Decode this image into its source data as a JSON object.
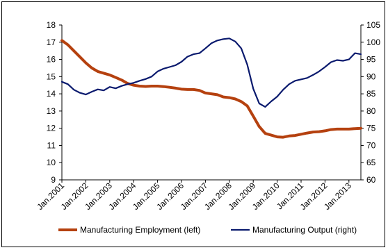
{
  "chart_data": {
    "type": "line",
    "x_labels": [
      "Jan.2001",
      "Jan.2002",
      "Jan.2003",
      "Jan.2004",
      "Jan.2005",
      "Jan.2006",
      "Jan.2007",
      "Jan.2008",
      "Jan.2009",
      "Jan.2010",
      "Jan.2011",
      "Jan.2012",
      "Jan.2013"
    ],
    "x_range": [
      "2001-01",
      "2013-07"
    ],
    "y_left": {
      "min": 9,
      "max": 18,
      "ticks": [
        "9",
        "10",
        "11",
        "12",
        "13",
        "14",
        "15",
        "16",
        "17",
        "18"
      ]
    },
    "y_right": {
      "min": 60,
      "max": 105,
      "ticks": [
        "60",
        "65",
        "70",
        "75",
        "80",
        "85",
        "90",
        "95",
        "100",
        "105"
      ]
    },
    "grid": false,
    "legend_position": "bottom",
    "series": [
      {
        "name": "Manufacturing Employment (left)",
        "axis": "left",
        "color": "#b5410f",
        "points": [
          [
            "2001-01",
            17.1
          ],
          [
            "2001-04",
            16.85
          ],
          [
            "2001-07",
            16.5
          ],
          [
            "2001-10",
            16.15
          ],
          [
            "2002-01",
            15.8
          ],
          [
            "2002-04",
            15.5
          ],
          [
            "2002-07",
            15.3
          ],
          [
            "2002-10",
            15.2
          ],
          [
            "2003-01",
            15.1
          ],
          [
            "2003-04",
            14.95
          ],
          [
            "2003-07",
            14.8
          ],
          [
            "2003-10",
            14.6
          ],
          [
            "2004-01",
            14.5
          ],
          [
            "2004-04",
            14.45
          ],
          [
            "2004-07",
            14.43
          ],
          [
            "2004-10",
            14.45
          ],
          [
            "2005-01",
            14.45
          ],
          [
            "2005-04",
            14.42
          ],
          [
            "2005-07",
            14.38
          ],
          [
            "2005-10",
            14.33
          ],
          [
            "2006-01",
            14.27
          ],
          [
            "2006-04",
            14.25
          ],
          [
            "2006-07",
            14.25
          ],
          [
            "2006-10",
            14.2
          ],
          [
            "2007-01",
            14.05
          ],
          [
            "2007-04",
            14.0
          ],
          [
            "2007-07",
            13.95
          ],
          [
            "2007-10",
            13.82
          ],
          [
            "2008-01",
            13.78
          ],
          [
            "2008-04",
            13.7
          ],
          [
            "2008-07",
            13.55
          ],
          [
            "2008-10",
            13.3
          ],
          [
            "2009-01",
            12.7
          ],
          [
            "2009-04",
            12.1
          ],
          [
            "2009-07",
            11.7
          ],
          [
            "2009-10",
            11.6
          ],
          [
            "2010-01",
            11.5
          ],
          [
            "2010-04",
            11.48
          ],
          [
            "2010-07",
            11.55
          ],
          [
            "2010-10",
            11.58
          ],
          [
            "2011-01",
            11.65
          ],
          [
            "2011-04",
            11.72
          ],
          [
            "2011-07",
            11.78
          ],
          [
            "2011-10",
            11.8
          ],
          [
            "2012-01",
            11.85
          ],
          [
            "2012-04",
            11.92
          ],
          [
            "2012-07",
            11.95
          ],
          [
            "2012-10",
            11.95
          ],
          [
            "2013-01",
            11.95
          ],
          [
            "2013-04",
            11.98
          ],
          [
            "2013-07",
            12.0
          ]
        ]
      },
      {
        "name": "Manufacturing Output (right)",
        "axis": "right",
        "color": "#0a1a6e",
        "points": [
          [
            "2001-01",
            88.5
          ],
          [
            "2001-04",
            87.8
          ],
          [
            "2001-07",
            86.2
          ],
          [
            "2001-10",
            85.3
          ],
          [
            "2002-01",
            84.8
          ],
          [
            "2002-04",
            85.6
          ],
          [
            "2002-07",
            86.3
          ],
          [
            "2002-10",
            86.0
          ],
          [
            "2003-01",
            87.0
          ],
          [
            "2003-04",
            86.6
          ],
          [
            "2003-07",
            87.3
          ],
          [
            "2003-10",
            87.8
          ],
          [
            "2004-01",
            88.2
          ],
          [
            "2004-04",
            88.8
          ],
          [
            "2004-07",
            89.3
          ],
          [
            "2004-10",
            90.0
          ],
          [
            "2005-01",
            91.5
          ],
          [
            "2005-04",
            92.3
          ],
          [
            "2005-07",
            92.8
          ],
          [
            "2005-10",
            93.3
          ],
          [
            "2006-01",
            94.3
          ],
          [
            "2006-04",
            95.8
          ],
          [
            "2006-07",
            96.5
          ],
          [
            "2006-10",
            96.8
          ],
          [
            "2007-01",
            98.2
          ],
          [
            "2007-04",
            99.7
          ],
          [
            "2007-07",
            100.5
          ],
          [
            "2007-10",
            100.9
          ],
          [
            "2008-01",
            101.1
          ],
          [
            "2008-04",
            100.2
          ],
          [
            "2008-07",
            98.2
          ],
          [
            "2008-10",
            93.5
          ],
          [
            "2009-01",
            86.5
          ],
          [
            "2009-04",
            82.2
          ],
          [
            "2009-07",
            81.2
          ],
          [
            "2009-10",
            82.8
          ],
          [
            "2010-01",
            84.2
          ],
          [
            "2010-04",
            86.2
          ],
          [
            "2010-07",
            87.8
          ],
          [
            "2010-10",
            88.8
          ],
          [
            "2011-01",
            89.2
          ],
          [
            "2011-04",
            89.6
          ],
          [
            "2011-07",
            90.5
          ],
          [
            "2011-10",
            91.5
          ],
          [
            "2012-01",
            92.8
          ],
          [
            "2012-04",
            94.2
          ],
          [
            "2012-07",
            94.8
          ],
          [
            "2012-10",
            94.6
          ],
          [
            "2013-01",
            95.0
          ],
          [
            "2013-04",
            96.8
          ],
          [
            "2013-07",
            96.5
          ]
        ]
      }
    ]
  }
}
